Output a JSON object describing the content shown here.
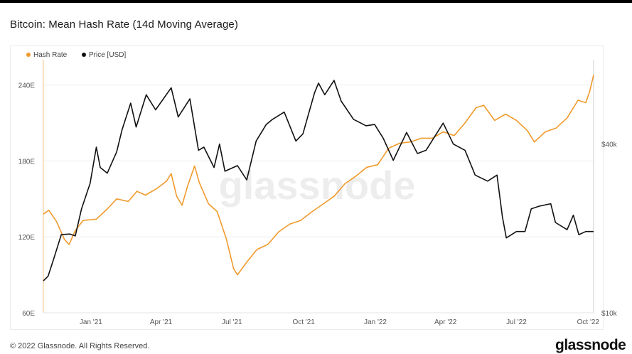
{
  "header": {
    "title": "Bitcoin: Mean Hash Rate (14d Moving Average)"
  },
  "footer": {
    "copyright": "© 2022 Glassnode. All Rights Reserved.",
    "brand": "glassnode",
    "watermark": "glassnode"
  },
  "colors": {
    "hash_rate": "#f09a2c",
    "price": "#111111",
    "grid": "#eeeeee",
    "axis_text": "#555555"
  },
  "chart_data": {
    "type": "line",
    "title": "Bitcoin: Mean Hash Rate (14d Moving Average)",
    "legend_position": "top-left",
    "x_ticks": [
      "Jan '21",
      "Apr '21",
      "Jul '21",
      "Oct '21",
      "Jan '22",
      "Apr '22",
      "Jul '22",
      "Oct '22"
    ],
    "x_range": [
      "2020-11-01",
      "2022-10-08"
    ],
    "y_left": {
      "label": "Hash Rate",
      "unit": "EH/s",
      "range": [
        60,
        260
      ],
      "ticks": [
        60,
        120,
        180,
        240
      ],
      "tick_labels": [
        "60E",
        "120E",
        "180E",
        "240E"
      ]
    },
    "y_right": {
      "label": "Price [USD]",
      "scale": "log",
      "range": [
        10000,
        80000
      ],
      "ticks": [
        10000,
        40000
      ],
      "tick_labels": [
        "$10k",
        "$40k"
      ]
    },
    "series": [
      {
        "name": "Hash Rate",
        "axis": "left",
        "color": "#f09a2c",
        "points": [
          [
            "2020-11-01",
            138
          ],
          [
            "2020-11-08",
            141
          ],
          [
            "2020-11-18",
            132
          ],
          [
            "2020-11-28",
            118
          ],
          [
            "2020-12-04",
            114
          ],
          [
            "2020-12-12",
            125
          ],
          [
            "2020-12-22",
            133
          ],
          [
            "2021-01-08",
            134
          ],
          [
            "2021-01-22",
            142
          ],
          [
            "2021-02-03",
            150
          ],
          [
            "2021-02-18",
            148
          ],
          [
            "2021-03-01",
            156
          ],
          [
            "2021-03-12",
            153
          ],
          [
            "2021-03-26",
            158
          ],
          [
            "2021-04-08",
            164
          ],
          [
            "2021-04-14",
            170
          ],
          [
            "2021-04-21",
            152
          ],
          [
            "2021-04-28",
            145
          ],
          [
            "2021-05-05",
            160
          ],
          [
            "2021-05-14",
            176
          ],
          [
            "2021-05-20",
            163
          ],
          [
            "2021-06-01",
            146
          ],
          [
            "2021-06-12",
            140
          ],
          [
            "2021-06-24",
            118
          ],
          [
            "2021-07-03",
            95
          ],
          [
            "2021-07-08",
            90
          ],
          [
            "2021-07-20",
            100
          ],
          [
            "2021-08-02",
            110
          ],
          [
            "2021-08-16",
            114
          ],
          [
            "2021-08-30",
            124
          ],
          [
            "2021-09-13",
            130
          ],
          [
            "2021-09-27",
            133
          ],
          [
            "2021-10-12",
            140
          ],
          [
            "2021-10-26",
            146
          ],
          [
            "2021-11-09",
            152
          ],
          [
            "2021-11-23",
            162
          ],
          [
            "2021-12-07",
            168
          ],
          [
            "2021-12-21",
            175
          ],
          [
            "2022-01-04",
            177
          ],
          [
            "2022-01-18",
            190
          ],
          [
            "2022-02-01",
            194
          ],
          [
            "2022-02-15",
            195
          ],
          [
            "2022-03-01",
            198
          ],
          [
            "2022-03-15",
            198
          ],
          [
            "2022-03-29",
            203
          ],
          [
            "2022-04-12",
            200
          ],
          [
            "2022-04-26",
            210
          ],
          [
            "2022-05-10",
            222
          ],
          [
            "2022-05-20",
            224
          ],
          [
            "2022-06-03",
            212
          ],
          [
            "2022-06-17",
            217
          ],
          [
            "2022-07-01",
            212
          ],
          [
            "2022-07-15",
            204
          ],
          [
            "2022-07-24",
            195
          ],
          [
            "2022-08-07",
            203
          ],
          [
            "2022-08-21",
            206
          ],
          [
            "2022-09-04",
            214
          ],
          [
            "2022-09-18",
            228
          ],
          [
            "2022-09-28",
            226
          ],
          [
            "2022-10-03",
            235
          ],
          [
            "2022-10-08",
            248
          ]
        ]
      },
      {
        "name": "Price [USD]",
        "axis": "right",
        "color": "#111111",
        "points": [
          [
            "2020-11-01",
            13000
          ],
          [
            "2020-11-07",
            13500
          ],
          [
            "2020-11-14",
            15500
          ],
          [
            "2020-11-24",
            19000
          ],
          [
            "2020-12-05",
            19100
          ],
          [
            "2020-12-12",
            18800
          ],
          [
            "2020-12-20",
            23500
          ],
          [
            "2020-12-31",
            29000
          ],
          [
            "2021-01-08",
            39000
          ],
          [
            "2021-01-13",
            33000
          ],
          [
            "2021-01-22",
            31500
          ],
          [
            "2021-02-03",
            37500
          ],
          [
            "2021-02-10",
            45000
          ],
          [
            "2021-02-21",
            56000
          ],
          [
            "2021-02-28",
            46000
          ],
          [
            "2021-03-13",
            60000
          ],
          [
            "2021-03-25",
            53000
          ],
          [
            "2021-04-14",
            63500
          ],
          [
            "2021-04-23",
            50000
          ],
          [
            "2021-05-08",
            58000
          ],
          [
            "2021-05-19",
            38000
          ],
          [
            "2021-05-26",
            39000
          ],
          [
            "2021-06-08",
            33000
          ],
          [
            "2021-06-15",
            40000
          ],
          [
            "2021-06-22",
            32000
          ],
          [
            "2021-07-08",
            33500
          ],
          [
            "2021-07-20",
            29800
          ],
          [
            "2021-08-01",
            41000
          ],
          [
            "2021-08-14",
            47000
          ],
          [
            "2021-08-22",
            49000
          ],
          [
            "2021-09-06",
            52000
          ],
          [
            "2021-09-21",
            41000
          ],
          [
            "2021-09-30",
            43500
          ],
          [
            "2021-10-15",
            61000
          ],
          [
            "2021-10-20",
            66000
          ],
          [
            "2021-10-28",
            60000
          ],
          [
            "2021-11-09",
            67500
          ],
          [
            "2021-11-18",
            57000
          ],
          [
            "2021-12-04",
            49000
          ],
          [
            "2021-12-20",
            46500
          ],
          [
            "2021-12-31",
            47000
          ],
          [
            "2022-01-11",
            42000
          ],
          [
            "2022-01-24",
            35000
          ],
          [
            "2022-02-10",
            44000
          ],
          [
            "2022-02-24",
            37000
          ],
          [
            "2022-03-07",
            38000
          ],
          [
            "2022-03-29",
            47500
          ],
          [
            "2022-04-11",
            40000
          ],
          [
            "2022-04-26",
            38000
          ],
          [
            "2022-05-09",
            31000
          ],
          [
            "2022-05-25",
            29500
          ],
          [
            "2022-06-06",
            31000
          ],
          [
            "2022-06-13",
            22000
          ],
          [
            "2022-06-18",
            18500
          ],
          [
            "2022-07-01",
            19500
          ],
          [
            "2022-07-12",
            19500
          ],
          [
            "2022-07-20",
            23500
          ],
          [
            "2022-07-30",
            24000
          ],
          [
            "2022-08-14",
            24500
          ],
          [
            "2022-08-20",
            21000
          ],
          [
            "2022-09-04",
            19800
          ],
          [
            "2022-09-12",
            22300
          ],
          [
            "2022-09-19",
            19000
          ],
          [
            "2022-09-28",
            19500
          ],
          [
            "2022-10-08",
            19500
          ]
        ]
      }
    ]
  }
}
